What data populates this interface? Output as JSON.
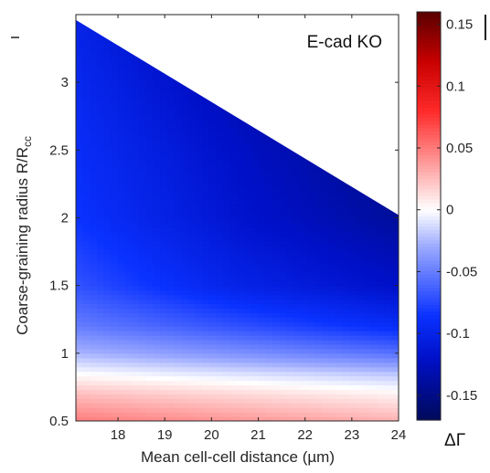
{
  "chart_data": {
    "type": "heatmap",
    "annotation": "E-cad KO",
    "xlabel": "Mean cell-cell distance (µm)",
    "ylabel_main": "Coarse-graining radius R/R",
    "ylabel_sub": "cc",
    "xlim": [
      17.1,
      24.0
    ],
    "ylim": [
      0.5,
      3.5
    ],
    "x_ticks": [
      "18",
      "19",
      "20",
      "21",
      "22",
      "23",
      "24"
    ],
    "y_ticks": [
      "0.5",
      "1",
      "1.5",
      "2",
      "2.5",
      "3"
    ],
    "x_tick_values": [
      18,
      19,
      20,
      21,
      22,
      23,
      24
    ],
    "y_tick_values": [
      0.5,
      1,
      1.5,
      2,
      2.5,
      3
    ],
    "valid_region_upper_boundary": {
      "x": [
        17.1,
        24.0
      ],
      "y": [
        3.46,
        2.02
      ]
    },
    "colorbar": {
      "label": "ΔΓ",
      "range": [
        -0.17,
        0.16
      ],
      "ticks": [
        "0.15",
        "0.1",
        "0.05",
        "0",
        "-0.05",
        "-0.1",
        "-0.15"
      ],
      "tick_values": [
        0.15,
        0.1,
        0.05,
        0,
        -0.05,
        -0.1,
        -0.15
      ],
      "colormap": [
        {
          "value": -0.17,
          "color": "#000a5a"
        },
        {
          "value": -0.12,
          "color": "#0010c8"
        },
        {
          "value": -0.085,
          "color": "#0a32ff"
        },
        {
          "value": -0.03,
          "color": "#9aa8ff"
        },
        {
          "value": 0.0,
          "color": "#ffffff"
        },
        {
          "value": 0.03,
          "color": "#ffb0b0"
        },
        {
          "value": 0.08,
          "color": "#ff2a2a"
        },
        {
          "value": 0.12,
          "color": "#c80000"
        },
        {
          "value": 0.16,
          "color": "#5a0000"
        }
      ]
    },
    "field_samples": {
      "x": [
        17.1,
        20.5,
        24.0
      ],
      "y": [
        0.5,
        0.7,
        0.85,
        1.0,
        1.2,
        1.5,
        2.0,
        2.5,
        3.0,
        3.46
      ],
      "values": [
        [
          0.05,
          0.04,
          0.03
        ],
        [
          0.025,
          0.015,
          0.005
        ],
        [
          0.0,
          -0.01,
          -0.02
        ],
        [
          -0.025,
          -0.04,
          -0.055
        ],
        [
          -0.05,
          -0.07,
          -0.09
        ],
        [
          -0.07,
          -0.1,
          -0.12
        ],
        [
          -0.085,
          -0.115,
          -0.14
        ],
        [
          -0.09,
          -0.12,
          -0.15
        ],
        [
          -0.095,
          -0.13,
          -0.155
        ],
        [
          -0.1,
          -0.14,
          -0.16
        ]
      ]
    }
  }
}
